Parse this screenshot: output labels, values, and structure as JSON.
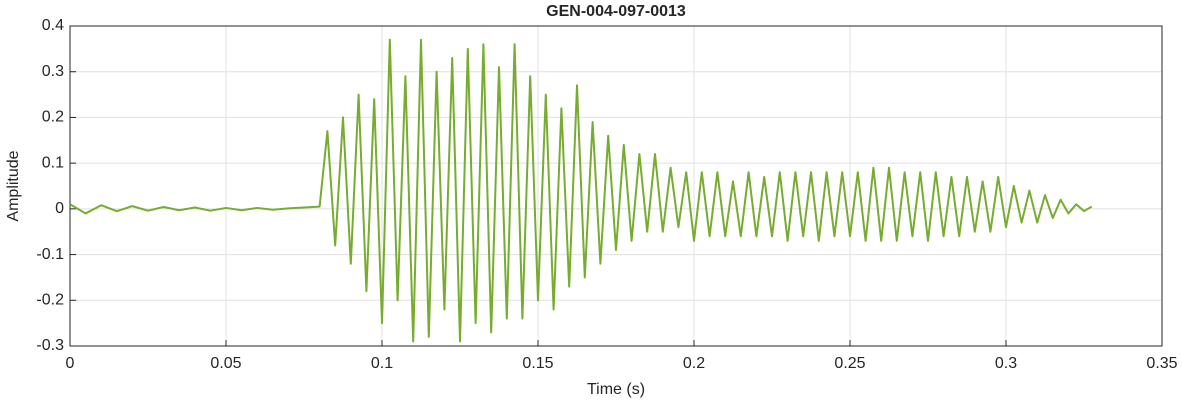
{
  "chart_data": {
    "type": "line",
    "title": "GEN-004-097-0013",
    "x_label": "Time (s)",
    "y_label": "Amplitude",
    "xlim": [
      0,
      0.35
    ],
    "xticks": [
      0,
      0.05,
      0.1,
      0.15,
      0.2,
      0.25,
      0.3,
      0.35
    ],
    "ylim": [
      -0.3,
      0.4
    ],
    "yticks": [
      -0.3,
      -0.2,
      -0.1,
      0,
      0.1,
      0.2,
      0.3,
      0.4
    ],
    "grid": true,
    "series": [
      {
        "color": "#77ac30",
        "x": [
          0,
          0.005,
          0.01,
          0.015,
          0.02,
          0.025,
          0.03,
          0.035,
          0.04,
          0.045,
          0.05,
          0.055,
          0.06,
          0.065,
          0.07,
          0.075,
          0.08,
          0.0825,
          0.085,
          0.0875,
          0.09,
          0.0925,
          0.095,
          0.0975,
          0.1,
          0.1025,
          0.105,
          0.1075,
          0.11,
          0.1125,
          0.115,
          0.1175,
          0.12,
          0.1225,
          0.125,
          0.1275,
          0.13,
          0.1325,
          0.135,
          0.1375,
          0.14,
          0.1425,
          0.145,
          0.1475,
          0.15,
          0.1525,
          0.155,
          0.1575,
          0.16,
          0.1625,
          0.165,
          0.1675,
          0.17,
          0.1725,
          0.175,
          0.1775,
          0.18,
          0.1825,
          0.185,
          0.1875,
          0.19,
          0.1925,
          0.195,
          0.1975,
          0.2,
          0.2025,
          0.205,
          0.2075,
          0.21,
          0.2125,
          0.215,
          0.2175,
          0.22,
          0.2225,
          0.225,
          0.2275,
          0.23,
          0.2325,
          0.235,
          0.2375,
          0.24,
          0.2425,
          0.245,
          0.2475,
          0.25,
          0.2525,
          0.255,
          0.2575,
          0.26,
          0.2625,
          0.265,
          0.2675,
          0.27,
          0.2725,
          0.275,
          0.2775,
          0.28,
          0.2825,
          0.285,
          0.2875,
          0.29,
          0.2925,
          0.295,
          0.2975,
          0.3,
          0.3025,
          0.305,
          0.3075,
          0.31,
          0.3125,
          0.315,
          0.3175,
          0.32,
          0.3225,
          0.325,
          0.3275
        ],
        "values": [
          0.01,
          -0.01,
          0.008,
          -0.005,
          0.006,
          -0.004,
          0.004,
          -0.003,
          0.003,
          -0.004,
          0.002,
          -0.003,
          0.002,
          -0.002,
          0.001,
          0.003,
          0.005,
          0.17,
          -0.08,
          0.2,
          -0.12,
          0.25,
          -0.18,
          0.24,
          -0.25,
          0.37,
          -0.2,
          0.29,
          -0.29,
          0.37,
          -0.28,
          0.3,
          -0.22,
          0.33,
          -0.29,
          0.35,
          -0.25,
          0.36,
          -0.27,
          0.31,
          -0.24,
          0.36,
          -0.24,
          0.29,
          -0.2,
          0.25,
          -0.22,
          0.22,
          -0.17,
          0.27,
          -0.15,
          0.19,
          -0.12,
          0.16,
          -0.09,
          0.14,
          -0.07,
          0.12,
          -0.05,
          0.12,
          -0.05,
          0.09,
          -0.04,
          0.08,
          -0.07,
          0.08,
          -0.06,
          0.08,
          -0.06,
          0.06,
          -0.06,
          0.08,
          -0.06,
          0.07,
          -0.06,
          0.08,
          -0.07,
          0.08,
          -0.06,
          0.08,
          -0.07,
          0.08,
          -0.06,
          0.08,
          -0.06,
          0.08,
          -0.07,
          0.09,
          -0.07,
          0.09,
          -0.07,
          0.08,
          -0.06,
          0.08,
          -0.07,
          0.08,
          -0.06,
          0.07,
          -0.06,
          0.07,
          -0.05,
          0.06,
          -0.05,
          0.07,
          -0.04,
          0.05,
          -0.03,
          0.04,
          -0.03,
          0.03,
          -0.02,
          0.02,
          -0.01,
          0.01,
          -0.005,
          0.005
        ]
      }
    ]
  }
}
